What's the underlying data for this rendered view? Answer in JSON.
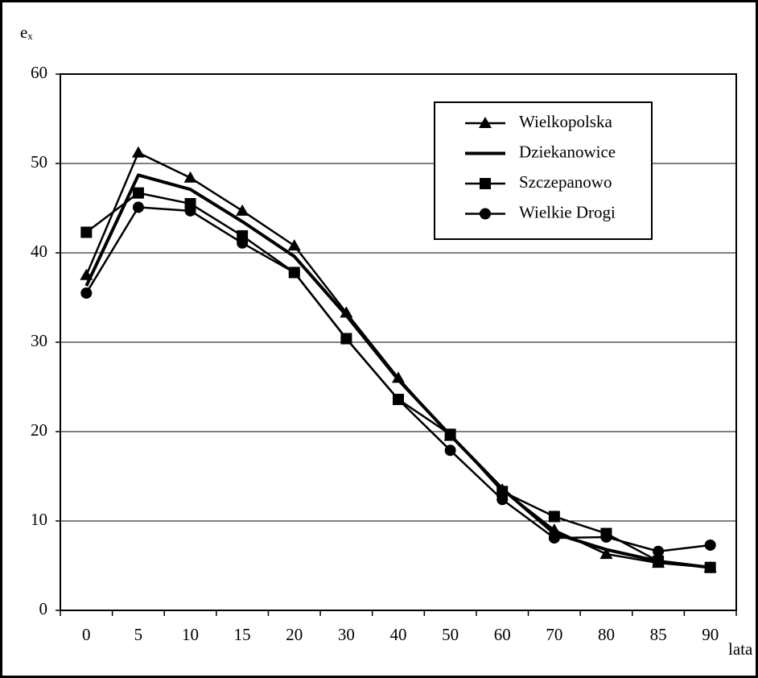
{
  "chart_data": {
    "type": "line",
    "y_label": "eₓ",
    "x_label": "lata",
    "categories": [
      "0",
      "5",
      "10",
      "15",
      "20",
      "30",
      "40",
      "50",
      "60",
      "70",
      "80",
      "85",
      "90"
    ],
    "series": [
      {
        "name": "Wielkopolska",
        "color": "#000000",
        "marker": "triangle",
        "values": [
          37.5,
          51.2,
          48.4,
          44.7,
          40.8,
          33.3,
          26.0,
          19.5,
          13.5,
          9.0,
          6.3,
          5.3,
          4.8
        ]
      },
      {
        "name": "Dziekanowice",
        "color": "#000000",
        "marker": "none",
        "values": [
          36.3,
          48.7,
          47.1,
          43.5,
          39.6,
          33.0,
          25.8,
          19.6,
          13.6,
          8.6,
          6.8,
          5.5,
          4.8
        ]
      },
      {
        "name": "Szczepanowo",
        "color": "#000000",
        "marker": "square",
        "values": [
          42.3,
          46.7,
          45.5,
          41.9,
          37.8,
          30.4,
          23.6,
          19.7,
          13.3,
          10.5,
          8.6,
          5.5,
          4.8
        ]
      },
      {
        "name": "Wielkie Drogi",
        "color": "#000000",
        "marker": "circle",
        "values": [
          35.5,
          45.1,
          44.7,
          41.1,
          37.8,
          30.4,
          23.6,
          17.9,
          12.4,
          8.1,
          8.2,
          6.6,
          7.3
        ]
      }
    ],
    "ylim": [
      0,
      60
    ],
    "yticks": [
      0,
      10,
      20,
      30,
      40,
      50,
      60
    ],
    "grid": true,
    "legend": "upper right"
  }
}
